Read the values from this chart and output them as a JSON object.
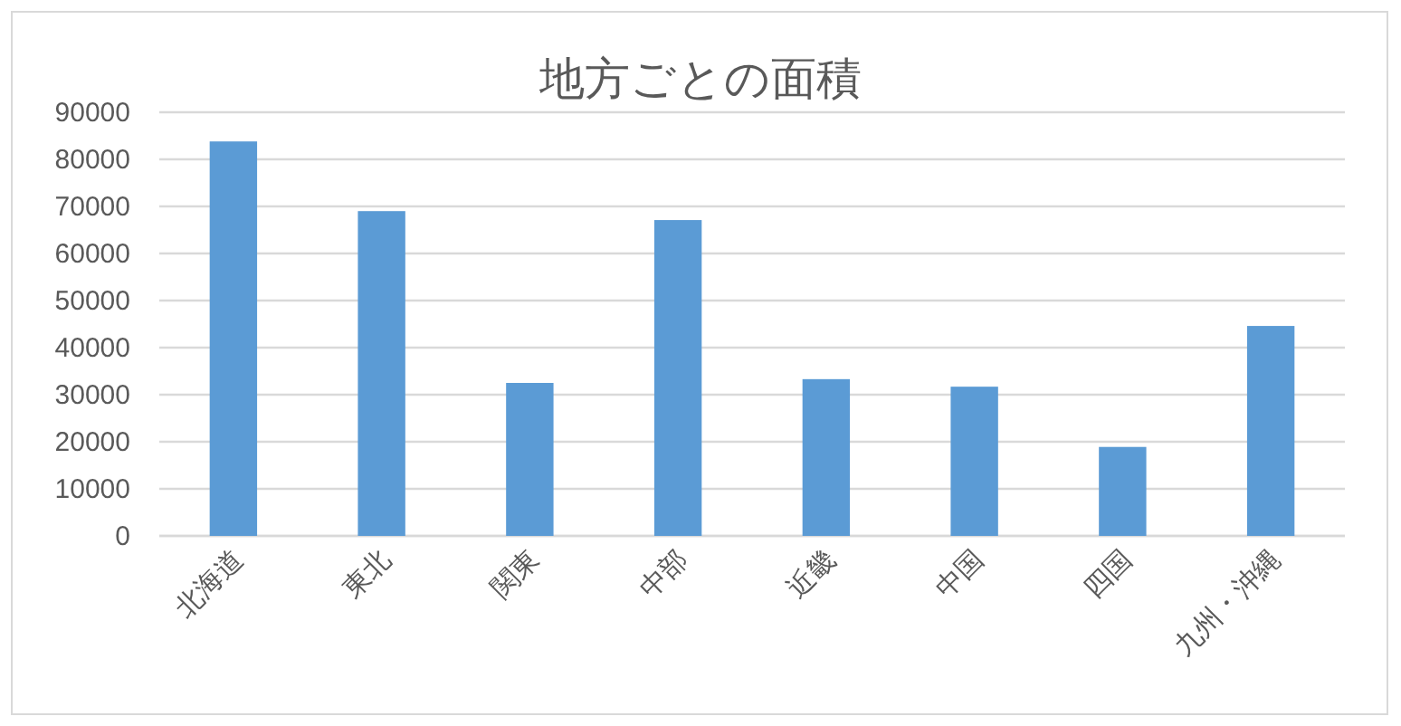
{
  "chart_data": {
    "type": "bar",
    "title": "地方ごとの面積",
    "categories": [
      "北海道",
      "東北",
      "関東",
      "中部",
      "近畿",
      "中国",
      "四国",
      "九州・沖縄"
    ],
    "values": [
      83800,
      69000,
      32500,
      67100,
      33300,
      31700,
      18900,
      44600
    ],
    "color": "#5b9bd5",
    "ylim": [
      0,
      90000
    ],
    "yticks": [
      0,
      10000,
      20000,
      30000,
      40000,
      50000,
      60000,
      70000,
      80000,
      90000
    ],
    "grid": "y"
  }
}
